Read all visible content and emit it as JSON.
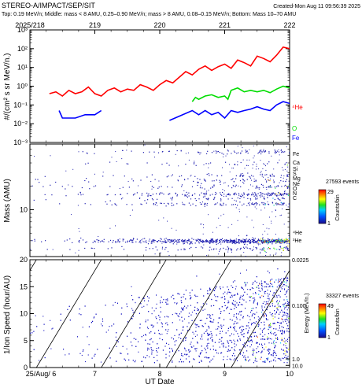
{
  "header": {
    "title": "STEREO-A/IMPACT/SEP/SIT",
    "created": "Created-Mon Aug 11 09:56:39 2025",
    "subtitle": "Top: 0.19 MeV/n; Middle: mass < 8 AMU, 0.25–0.90 MeV/n; mass > 8 AMU, 0.08–0.15 MeV/n; Bottom: Mass 10–70 AMU"
  },
  "colors": {
    "he4": "#ff0000",
    "o": "#00dd00",
    "fe": "#0000ff",
    "scatter": "#1010c0"
  },
  "chart_data": [
    {
      "type": "line",
      "panel": "top",
      "xlabel": "",
      "ylabel": "#/(cm² s sr MeV/n.)",
      "ylog": true,
      "ylim": [
        0.001,
        1000
      ],
      "yticks": [
        "10⁻³",
        "10⁻²",
        "10⁻¹",
        "10⁰",
        "10¹",
        "10²",
        "10³"
      ],
      "xlim": [
        218,
        222
      ],
      "top_axis_labels": [
        "2025/218",
        "219",
        "220",
        "221",
        "222"
      ],
      "legend": [
        "⁴He",
        "O",
        "Fe"
      ],
      "legend_placement": "right",
      "series": [
        {
          "name": "⁴He",
          "x": [
            218.3,
            218.4,
            218.5,
            218.6,
            218.7,
            218.8,
            218.9,
            219.0,
            219.1,
            219.2,
            219.3,
            219.4,
            219.5,
            219.6,
            219.7,
            219.8,
            219.9,
            220.0,
            220.1,
            220.2,
            220.3,
            220.4,
            220.5,
            220.6,
            220.7,
            220.8,
            220.9,
            221.0,
            221.1,
            221.2,
            221.3,
            221.4,
            221.5,
            221.6,
            221.7,
            221.8,
            221.9,
            222.0
          ],
          "values": [
            0.4,
            0.5,
            0.3,
            0.6,
            0.4,
            0.5,
            0.9,
            0.4,
            0.3,
            0.6,
            0.8,
            0.5,
            0.7,
            0.6,
            1.2,
            0.9,
            0.6,
            1.2,
            2.0,
            1.5,
            3.0,
            6.0,
            4.0,
            8.0,
            12,
            7.0,
            11,
            15,
            9.0,
            25,
            18,
            12,
            40,
            30,
            20,
            45,
            120,
            100
          ]
        },
        {
          "name": "O",
          "x": [
            220.5,
            220.55,
            220.6,
            220.7,
            220.8,
            220.9,
            221.0,
            221.05,
            221.1,
            221.2,
            221.3,
            221.4,
            221.5,
            221.6,
            221.7,
            221.8,
            221.9,
            222.0
          ],
          "values": [
            0.15,
            0.25,
            0.2,
            0.3,
            0.35,
            0.25,
            0.3,
            0.2,
            0.6,
            0.8,
            0.5,
            0.6,
            0.5,
            0.6,
            0.45,
            0.7,
            1.0,
            0.8
          ]
        },
        {
          "name": "Fe",
          "x": [
            218.45,
            218.5,
            218.7,
            218.85,
            219.0,
            219.1,
            220.15,
            220.5,
            220.6,
            220.7,
            220.8,
            220.9,
            221.0,
            221.1,
            221.2,
            221.3,
            221.4,
            221.5,
            221.6,
            221.7,
            221.8,
            221.9,
            222.0
          ],
          "values": [
            0.05,
            0.02,
            0.02,
            0.03,
            0.03,
            0.05,
            0.015,
            0.05,
            0.03,
            0.05,
            0.03,
            0.04,
            0.02,
            0.05,
            0.04,
            0.05,
            0.06,
            0.08,
            0.06,
            0.05,
            0.1,
            0.15,
            0.12
          ]
        }
      ]
    },
    {
      "type": "heatmap",
      "panel": "middle",
      "ylabel": "Mass (AMU)",
      "ylog": true,
      "ylim": [
        2.5,
        70
      ],
      "yticks": [
        "10"
      ],
      "xlim": [
        218,
        222
      ],
      "events": "27593 events",
      "colorbar": {
        "min": "1",
        "max": "29",
        "label": "Counts/bin"
      },
      "species_labels": [
        "Fe",
        "Ca",
        "Si",
        "S",
        "Mg",
        "Ne",
        "O",
        "N",
        "C",
        "⁴He",
        "³He"
      ],
      "species_masses": [
        56,
        40,
        28,
        32,
        24,
        20,
        16,
        14,
        12,
        4,
        3
      ]
    },
    {
      "type": "scatter",
      "panel": "bottom",
      "xlabel": "UT Date",
      "ylabel": "1/Ion Speed (hour/AU)",
      "xlim": [
        6,
        10
      ],
      "ylim": [
        0,
        20
      ],
      "xticks": [
        "25/Aug/ 6",
        "7",
        "8",
        "9",
        "10"
      ],
      "yticks": [
        "0",
        "5",
        "10",
        "15",
        "20"
      ],
      "right_axis_label": "Energy (MeV/n.)",
      "right_ticks": [
        "0.0225",
        "0.100",
        "1.0",
        "10.0"
      ],
      "events": "33327 events",
      "colorbar": {
        "min": "1",
        "max": "49",
        "label": "Counts/bin"
      }
    }
  ]
}
